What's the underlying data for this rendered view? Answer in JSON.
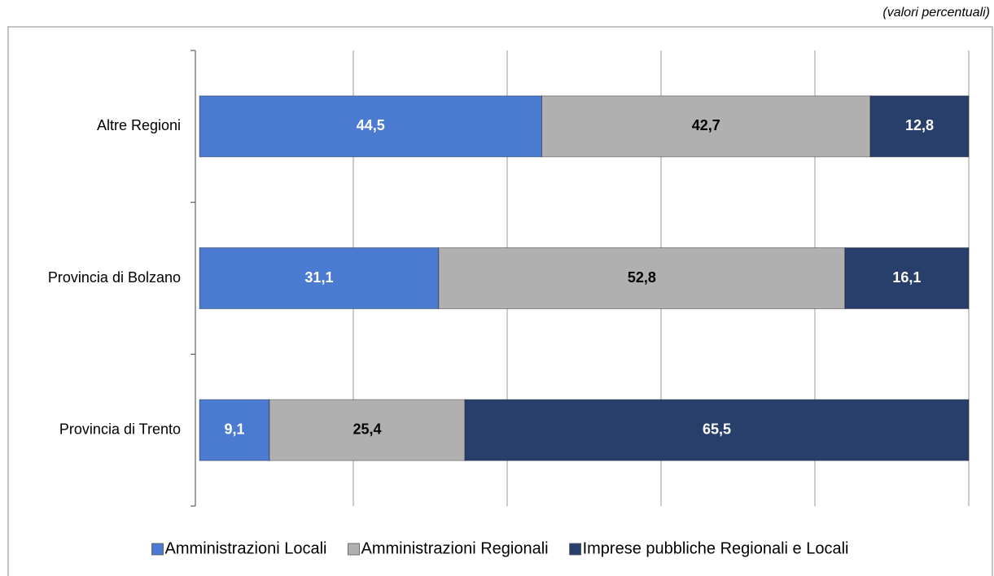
{
  "chart_data": {
    "type": "stacked_barh",
    "subtitle": "(valori percentuali)",
    "categories": [
      "Altre Regioni",
      "Provincia di Bolzano",
      "Provincia di Trento"
    ],
    "series": [
      {
        "name": "Amministrazioni Locali",
        "color": "#4a7bd0",
        "label_color": "#ffffff",
        "values": [
          44.5,
          31.1,
          9.1
        ],
        "value_labels": [
          "44,5",
          "31,1",
          "9,1"
        ]
      },
      {
        "name": "Amministrazioni Regionali",
        "color": "#b0b0b0",
        "label_color": "#000000",
        "values": [
          42.7,
          52.8,
          25.4
        ],
        "value_labels": [
          "42,7",
          "52,8",
          "25,4"
        ]
      },
      {
        "name": "Imprese pubbliche Regionali e Locali",
        "color": "#283f6c",
        "label_color": "#ffffff",
        "values": [
          12.8,
          16.1,
          65.5
        ],
        "value_labels": [
          "12,8",
          "16,1",
          "65,5"
        ]
      }
    ],
    "xlim": [
      0,
      100
    ],
    "xticks": [
      0,
      20,
      40,
      60,
      80,
      100
    ],
    "grid": true,
    "legend": "bottom"
  }
}
